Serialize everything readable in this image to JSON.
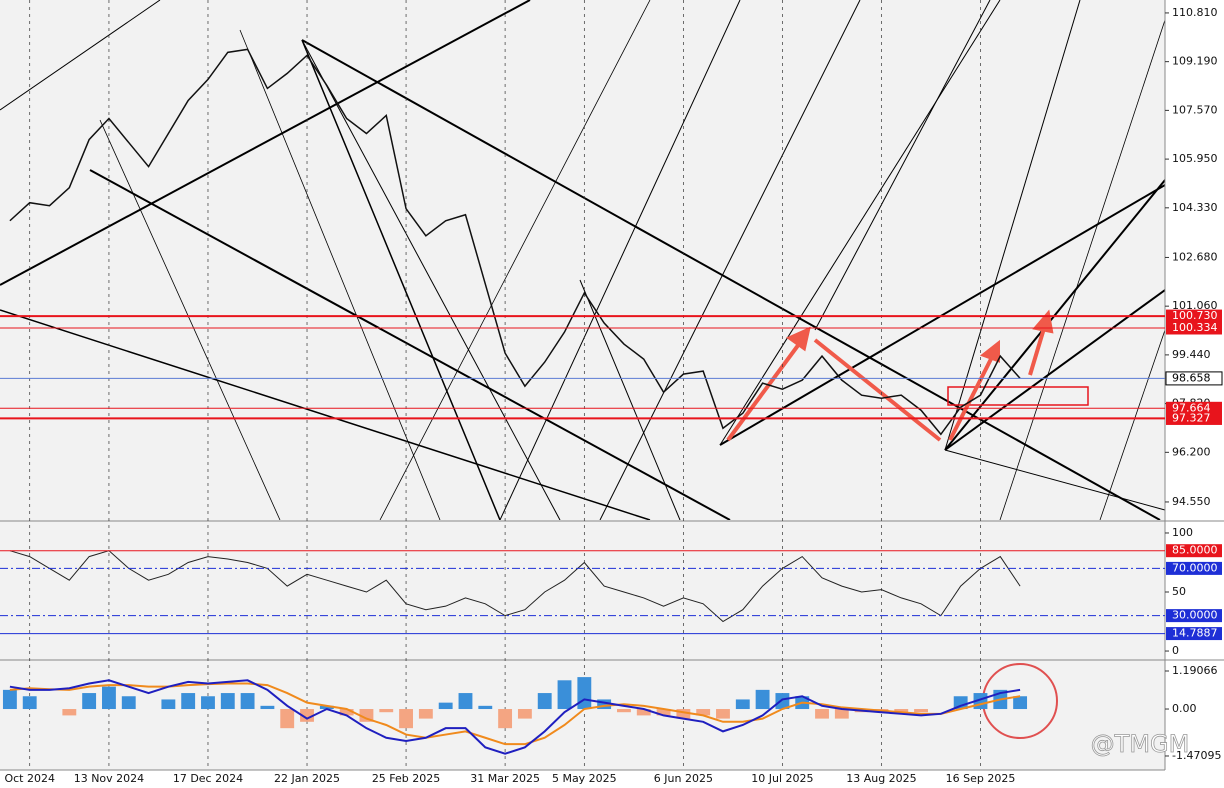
{
  "chart_data": [
    {
      "type": "line",
      "color": "#111111",
      "categories": [
        null,
        "Oct 2024",
        null,
        null,
        null,
        "13 Nov 2024",
        null,
        null,
        null,
        null,
        "17 Dec 2024",
        null,
        null,
        null,
        null,
        "22 Jan 2025",
        null,
        null,
        null,
        null,
        "25 Feb 2025",
        null,
        null,
        null,
        null,
        "31 Mar 2025",
        null,
        null,
        null,
        "5 May 2025",
        null,
        null,
        null,
        null,
        "6 Jun 2025",
        null,
        null,
        null,
        null,
        "10 Jul 2025",
        null,
        null,
        null,
        null,
        "13 Aug 2025",
        null,
        null,
        null,
        null,
        "16 Sep 2025",
        null,
        null
      ],
      "values": [
        103.9,
        104.5,
        104.4,
        105.0,
        106.6,
        107.3,
        106.5,
        105.7,
        106.8,
        107.9,
        108.6,
        109.5,
        109.6,
        108.3,
        108.8,
        109.4,
        108.4,
        107.3,
        106.8,
        107.4,
        104.3,
        103.4,
        103.9,
        104.1,
        101.8,
        99.5,
        98.4,
        99.2,
        100.2,
        101.5,
        100.5,
        99.8,
        99.3,
        98.2,
        98.8,
        98.9,
        97.0,
        97.5,
        98.5,
        98.3,
        98.6,
        99.4,
        98.6,
        98.1,
        98.0,
        98.1,
        97.6,
        96.8,
        97.7,
        98.1,
        99.4,
        98.66
      ],
      "ylim": [
        93.95,
        111.24
      ],
      "yticks": [
        {
          "value": 110.81,
          "label": "110.810"
        },
        {
          "value": 109.19,
          "label": "109.190"
        },
        {
          "value": 107.57,
          "label": "107.570"
        },
        {
          "value": 105.95,
          "label": "105.950"
        },
        {
          "value": 104.33,
          "label": "104.330"
        },
        {
          "value": 102.68,
          "label": "102.680"
        },
        {
          "value": 101.06,
          "label": "101.060"
        },
        {
          "value": 99.44,
          "label": "99.440"
        },
        {
          "value": 97.82,
          "label": "97.820"
        },
        {
          "value": 96.2,
          "label": "96.200"
        },
        {
          "value": 94.55,
          "label": "94.550"
        }
      ],
      "levels": [
        {
          "value": 100.73,
          "label": "100.730",
          "color": "#e8141c"
        },
        {
          "value": 100.334,
          "label": "100.334",
          "color": "#e8141c"
        },
        {
          "value": 98.658,
          "label": "98.658",
          "color": "#5b7bd5"
        },
        {
          "value": 97.664,
          "label": "97.664",
          "color": "#e8141c"
        },
        {
          "value": 97.327,
          "label": "97.327",
          "color": "#e8141c"
        }
      ],
      "watermark": "@TMGM"
    },
    {
      "type": "line",
      "color": "#222222",
      "values": [
        85,
        80,
        70,
        60,
        80,
        85,
        70,
        60,
        65,
        75,
        80,
        78,
        75,
        70,
        55,
        65,
        60,
        55,
        50,
        60,
        40,
        35,
        38,
        45,
        40,
        30,
        35,
        50,
        60,
        75,
        55,
        50,
        45,
        38,
        45,
        40,
        25,
        35,
        55,
        70,
        80,
        62,
        55,
        50,
        52,
        45,
        40,
        30,
        55,
        70,
        80,
        55
      ],
      "ylim": [
        -5.9,
        109.3
      ],
      "yticks": [
        100,
        50,
        0
      ],
      "levels": [
        {
          "value": 85,
          "label": "85.0000",
          "color": "#e8141c"
        },
        {
          "value": 70,
          "label": "70.0000",
          "color": "#1e2fd6"
        },
        {
          "value": 30,
          "label": "30.0000",
          "color": "#1e2fd6"
        },
        {
          "value": 14.7887,
          "label": "14.7887",
          "color": "#1e2fd6"
        }
      ]
    },
    {
      "type": "macd",
      "colors": {
        "up": "#3a8fd9",
        "down": "#f4a582",
        "macd": "#1f1fbf",
        "signal": "#f08a1c"
      },
      "histogram": [
        0.6,
        0.4,
        0,
        -0.2,
        0.5,
        0.7,
        0.4,
        0,
        0.3,
        0.5,
        0.4,
        0.5,
        0.5,
        0.1,
        -0.6,
        -0.4,
        0.1,
        -0.2,
        -0.4,
        -0.1,
        -0.6,
        -0.3,
        0.2,
        0.5,
        0.1,
        -0.6,
        -0.3,
        0.5,
        0.9,
        1.0,
        0.3,
        -0.1,
        -0.2,
        -0.2,
        -0.3,
        -0.2,
        -0.3,
        0.3,
        0.6,
        0.5,
        0.4,
        -0.3,
        -0.3,
        -0.1,
        -0.1,
        -0.1,
        -0.1,
        0,
        0.4,
        0.5,
        0.6,
        0.4
      ],
      "macd": [
        0.7,
        0.6,
        0.6,
        0.65,
        0.8,
        0.9,
        0.7,
        0.5,
        0.7,
        0.85,
        0.8,
        0.85,
        0.9,
        0.6,
        0.1,
        -0.3,
        0.0,
        -0.2,
        -0.6,
        -0.9,
        -1.0,
        -0.9,
        -0.6,
        -0.6,
        -1.2,
        -1.4,
        -1.2,
        -0.7,
        -0.1,
        0.3,
        0.2,
        0.1,
        0.0,
        -0.2,
        -0.3,
        -0.4,
        -0.7,
        -0.5,
        -0.2,
        0.3,
        0.4,
        0.1,
        0.0,
        -0.05,
        -0.1,
        -0.15,
        -0.2,
        -0.15,
        0.1,
        0.3,
        0.5,
        0.6
      ],
      "signal": [
        0.6,
        0.65,
        0.62,
        0.6,
        0.7,
        0.75,
        0.75,
        0.7,
        0.7,
        0.75,
        0.78,
        0.8,
        0.8,
        0.75,
        0.5,
        0.2,
        0.1,
        0.0,
        -0.3,
        -0.5,
        -0.8,
        -0.9,
        -0.8,
        -0.7,
        -0.9,
        -1.1,
        -1.1,
        -0.9,
        -0.5,
        0.0,
        0.1,
        0.15,
        0.1,
        0.0,
        -0.1,
        -0.2,
        -0.4,
        -0.4,
        -0.3,
        0.0,
        0.2,
        0.15,
        0.05,
        0.0,
        -0.05,
        -0.1,
        -0.15,
        -0.15,
        0.0,
        0.15,
        0.3,
        0.4
      ],
      "ylim": [
        -1.91,
        1.473
      ],
      "yticks": [
        1.19066,
        {
          "value": 0,
          "label": "0.00"
        },
        -1.47095
      ]
    }
  ]
}
